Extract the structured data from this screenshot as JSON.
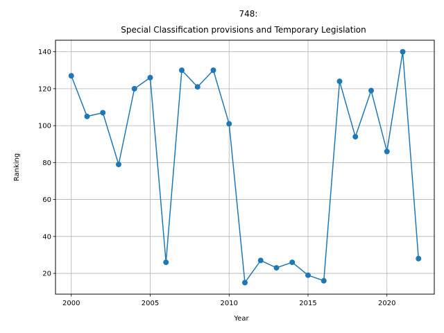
{
  "chart_data": {
    "type": "line",
    "title_line1": "748:",
    "title_line2": "Special Classification provisions and Temporary Legislation",
    "xlabel": "Year",
    "ylabel": "Ranking",
    "x": [
      2000,
      2001,
      2002,
      2003,
      2004,
      2005,
      2006,
      2007,
      2008,
      2009,
      2010,
      2011,
      2012,
      2013,
      2014,
      2015,
      2016,
      2017,
      2018,
      2019,
      2020,
      2021,
      2022
    ],
    "y": [
      127,
      105,
      107,
      79,
      120,
      126,
      26,
      130,
      121,
      130,
      101,
      15,
      27,
      23,
      26,
      19,
      16,
      124,
      94,
      119,
      86,
      140,
      28
    ],
    "xlim": [
      1999,
      2023
    ],
    "ylim": [
      8.75,
      146.25
    ],
    "xticks": [
      2000,
      2005,
      2010,
      2015,
      2020
    ],
    "yticks": [
      20,
      40,
      60,
      80,
      100,
      120,
      140
    ],
    "grid": true,
    "color": "#1f77b4"
  }
}
